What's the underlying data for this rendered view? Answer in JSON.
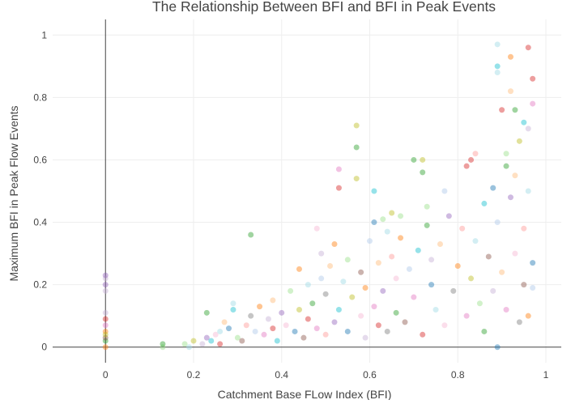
{
  "chart_data": {
    "type": "scatter",
    "title": "The Relationship Between BFI and BFI in Peak Events",
    "xlabel": "Catchment Base FLow Index (BFI)",
    "ylabel": "Maximum BFI in Peak Flow Events",
    "xlim": [
      -0.12,
      1.035
    ],
    "ylim": [
      -0.05,
      1.05
    ],
    "xticks": [
      0,
      0.2,
      0.4,
      0.6,
      0.8,
      1
    ],
    "xtick_labels": [
      "0",
      "0.2",
      "0.4",
      "0.6",
      "0.8",
      "1"
    ],
    "yticks": [
      0,
      0.2,
      0.4,
      0.6,
      0.8,
      1
    ],
    "ytick_labels": [
      "0",
      "0.2",
      "0.4",
      "0.6",
      "0.8",
      "1"
    ],
    "grid": true,
    "legend": "none",
    "marker_opacity": 0.45,
    "palette": [
      "#1f77b4",
      "#ff7f0e",
      "#2ca02c",
      "#d62728",
      "#9467bd",
      "#8c564b",
      "#e377c2",
      "#7f7f7f",
      "#bcbd22",
      "#17becf",
      "#aec7e8",
      "#ffbb78",
      "#98df8a",
      "#ff9896",
      "#c5b0d5",
      "#f7b6d2",
      "#9edae5"
    ],
    "points": [
      {
        "x": 0.0,
        "y": 0.0,
        "c": 1
      },
      {
        "x": 0.0,
        "y": 0.02,
        "c": 2
      },
      {
        "x": 0.0,
        "y": 0.03,
        "c": 5
      },
      {
        "x": 0.0,
        "y": 0.05,
        "c": 1
      },
      {
        "x": 0.0,
        "y": 0.07,
        "c": 6
      },
      {
        "x": 0.0,
        "y": 0.09,
        "c": 3
      },
      {
        "x": 0.0,
        "y": 0.11,
        "c": 14
      },
      {
        "x": 0.0,
        "y": 0.18,
        "c": 14
      },
      {
        "x": 0.0,
        "y": 0.2,
        "c": 4
      },
      {
        "x": 0.0,
        "y": 0.22,
        "c": 14
      },
      {
        "x": 0.0,
        "y": 0.23,
        "c": 4
      },
      {
        "x": 0.0,
        "y": 0.04,
        "c": 8
      },
      {
        "x": 0.13,
        "y": 0.0,
        "c": 12
      },
      {
        "x": 0.13,
        "y": 0.01,
        "c": 2
      },
      {
        "x": 0.18,
        "y": 0.01,
        "c": 12
      },
      {
        "x": 0.19,
        "y": 0.0,
        "c": 16
      },
      {
        "x": 0.2,
        "y": 0.02,
        "c": 8
      },
      {
        "x": 0.22,
        "y": 0.01,
        "c": 14
      },
      {
        "x": 0.23,
        "y": 0.03,
        "c": 4
      },
      {
        "x": 0.23,
        "y": 0.11,
        "c": 2
      },
      {
        "x": 0.24,
        "y": 0.02,
        "c": 9
      },
      {
        "x": 0.25,
        "y": 0.04,
        "c": 15
      },
      {
        "x": 0.26,
        "y": 0.05,
        "c": 16
      },
      {
        "x": 0.26,
        "y": 0.01,
        "c": 3
      },
      {
        "x": 0.27,
        "y": 0.08,
        "c": 11
      },
      {
        "x": 0.28,
        "y": 0.06,
        "c": 0
      },
      {
        "x": 0.29,
        "y": 0.12,
        "c": 9
      },
      {
        "x": 0.29,
        "y": 0.14,
        "c": 16
      },
      {
        "x": 0.3,
        "y": 0.03,
        "c": 12
      },
      {
        "x": 0.31,
        "y": 0.02,
        "c": 5
      },
      {
        "x": 0.32,
        "y": 0.07,
        "c": 13
      },
      {
        "x": 0.33,
        "y": 0.36,
        "c": 2
      },
      {
        "x": 0.33,
        "y": 0.1,
        "c": 7
      },
      {
        "x": 0.34,
        "y": 0.05,
        "c": 10
      },
      {
        "x": 0.35,
        "y": 0.13,
        "c": 1
      },
      {
        "x": 0.36,
        "y": 0.04,
        "c": 6
      },
      {
        "x": 0.37,
        "y": 0.09,
        "c": 14
      },
      {
        "x": 0.38,
        "y": 0.06,
        "c": 3
      },
      {
        "x": 0.38,
        "y": 0.15,
        "c": 11
      },
      {
        "x": 0.39,
        "y": 0.02,
        "c": 9
      },
      {
        "x": 0.4,
        "y": 0.11,
        "c": 4
      },
      {
        "x": 0.41,
        "y": 0.07,
        "c": 15
      },
      {
        "x": 0.42,
        "y": 0.18,
        "c": 12
      },
      {
        "x": 0.43,
        "y": 0.05,
        "c": 0
      },
      {
        "x": 0.44,
        "y": 0.25,
        "c": 1
      },
      {
        "x": 0.44,
        "y": 0.12,
        "c": 8
      },
      {
        "x": 0.45,
        "y": 0.03,
        "c": 5
      },
      {
        "x": 0.46,
        "y": 0.2,
        "c": 16
      },
      {
        "x": 0.46,
        "y": 0.09,
        "c": 3
      },
      {
        "x": 0.47,
        "y": 0.14,
        "c": 2
      },
      {
        "x": 0.48,
        "y": 0.38,
        "c": 15
      },
      {
        "x": 0.48,
        "y": 0.06,
        "c": 6
      },
      {
        "x": 0.49,
        "y": 0.22,
        "c": 10
      },
      {
        "x": 0.49,
        "y": 0.3,
        "c": 14
      },
      {
        "x": 0.5,
        "y": 0.04,
        "c": 13
      },
      {
        "x": 0.5,
        "y": 0.17,
        "c": 7
      },
      {
        "x": 0.51,
        "y": 0.26,
        "c": 11
      },
      {
        "x": 0.52,
        "y": 0.08,
        "c": 4
      },
      {
        "x": 0.52,
        "y": 0.33,
        "c": 1
      },
      {
        "x": 0.53,
        "y": 0.51,
        "c": 3
      },
      {
        "x": 0.53,
        "y": 0.57,
        "c": 6
      },
      {
        "x": 0.53,
        "y": 0.12,
        "c": 9
      },
      {
        "x": 0.54,
        "y": 0.21,
        "c": 16
      },
      {
        "x": 0.55,
        "y": 0.05,
        "c": 0
      },
      {
        "x": 0.55,
        "y": 0.28,
        "c": 12
      },
      {
        "x": 0.56,
        "y": 0.16,
        "c": 8
      },
      {
        "x": 0.57,
        "y": 0.54,
        "c": 8
      },
      {
        "x": 0.57,
        "y": 0.64,
        "c": 2
      },
      {
        "x": 0.57,
        "y": 0.71,
        "c": 8
      },
      {
        "x": 0.58,
        "y": 0.1,
        "c": 15
      },
      {
        "x": 0.58,
        "y": 0.24,
        "c": 5
      },
      {
        "x": 0.59,
        "y": 0.03,
        "c": 14
      },
      {
        "x": 0.59,
        "y": 0.19,
        "c": 1
      },
      {
        "x": 0.6,
        "y": 0.34,
        "c": 10
      },
      {
        "x": 0.61,
        "y": 0.4,
        "c": 0
      },
      {
        "x": 0.61,
        "y": 0.5,
        "c": 9
      },
      {
        "x": 0.61,
        "y": 0.13,
        "c": 6
      },
      {
        "x": 0.62,
        "y": 0.07,
        "c": 3
      },
      {
        "x": 0.62,
        "y": 0.27,
        "c": 11
      },
      {
        "x": 0.63,
        "y": 0.41,
        "c": 12
      },
      {
        "x": 0.63,
        "y": 0.18,
        "c": 4
      },
      {
        "x": 0.64,
        "y": 0.37,
        "c": 16
      },
      {
        "x": 0.64,
        "y": 0.05,
        "c": 7
      },
      {
        "x": 0.65,
        "y": 0.29,
        "c": 13
      },
      {
        "x": 0.65,
        "y": 0.43,
        "c": 8
      },
      {
        "x": 0.66,
        "y": 0.11,
        "c": 2
      },
      {
        "x": 0.66,
        "y": 0.22,
        "c": 15
      },
      {
        "x": 0.67,
        "y": 0.35,
        "c": 1
      },
      {
        "x": 0.67,
        "y": 0.42,
        "c": 12
      },
      {
        "x": 0.68,
        "y": 0.08,
        "c": 5
      },
      {
        "x": 0.69,
        "y": 0.25,
        "c": 10
      },
      {
        "x": 0.7,
        "y": 0.16,
        "c": 6
      },
      {
        "x": 0.7,
        "y": 0.6,
        "c": 2
      },
      {
        "x": 0.71,
        "y": 0.31,
        "c": 9
      },
      {
        "x": 0.72,
        "y": 0.04,
        "c": 3
      },
      {
        "x": 0.72,
        "y": 0.56,
        "c": 2
      },
      {
        "x": 0.72,
        "y": 0.6,
        "c": 8
      },
      {
        "x": 0.73,
        "y": 0.45,
        "c": 12
      },
      {
        "x": 0.73,
        "y": 0.39,
        "c": 2
      },
      {
        "x": 0.74,
        "y": 0.2,
        "c": 0
      },
      {
        "x": 0.74,
        "y": 0.28,
        "c": 14
      },
      {
        "x": 0.75,
        "y": 0.12,
        "c": 16
      },
      {
        "x": 0.76,
        "y": 0.33,
        "c": 11
      },
      {
        "x": 0.77,
        "y": 0.5,
        "c": 10
      },
      {
        "x": 0.77,
        "y": 0.07,
        "c": 15
      },
      {
        "x": 0.78,
        "y": 0.42,
        "c": 4
      },
      {
        "x": 0.79,
        "y": 0.18,
        "c": 7
      },
      {
        "x": 0.8,
        "y": 0.26,
        "c": 1
      },
      {
        "x": 0.81,
        "y": 0.38,
        "c": 13
      },
      {
        "x": 0.82,
        "y": 0.1,
        "c": 6
      },
      {
        "x": 0.82,
        "y": 0.58,
        "c": 3
      },
      {
        "x": 0.83,
        "y": 0.6,
        "c": 3
      },
      {
        "x": 0.83,
        "y": 0.22,
        "c": 8
      },
      {
        "x": 0.84,
        "y": 0.62,
        "c": 13
      },
      {
        "x": 0.84,
        "y": 0.34,
        "c": 16
      },
      {
        "x": 0.85,
        "y": 0.14,
        "c": 12
      },
      {
        "x": 0.86,
        "y": 0.46,
        "c": 9
      },
      {
        "x": 0.86,
        "y": 0.05,
        "c": 2
      },
      {
        "x": 0.87,
        "y": 0.29,
        "c": 5
      },
      {
        "x": 0.88,
        "y": 0.51,
        "c": 0
      },
      {
        "x": 0.88,
        "y": 0.18,
        "c": 14
      },
      {
        "x": 0.89,
        "y": 0.97,
        "c": 16
      },
      {
        "x": 0.89,
        "y": 0.9,
        "c": 9
      },
      {
        "x": 0.89,
        "y": 0.88,
        "c": 16
      },
      {
        "x": 0.89,
        "y": 0.0,
        "c": 0
      },
      {
        "x": 0.89,
        "y": 0.4,
        "c": 10
      },
      {
        "x": 0.9,
        "y": 0.76,
        "c": 3
      },
      {
        "x": 0.9,
        "y": 0.24,
        "c": 11
      },
      {
        "x": 0.91,
        "y": 0.58,
        "c": 2
      },
      {
        "x": 0.91,
        "y": 0.62,
        "c": 12
      },
      {
        "x": 0.91,
        "y": 0.12,
        "c": 6
      },
      {
        "x": 0.92,
        "y": 0.93,
        "c": 1
      },
      {
        "x": 0.92,
        "y": 0.82,
        "c": 11
      },
      {
        "x": 0.92,
        "y": 0.48,
        "c": 4
      },
      {
        "x": 0.93,
        "y": 0.76,
        "c": 2
      },
      {
        "x": 0.93,
        "y": 0.55,
        "c": 11
      },
      {
        "x": 0.93,
        "y": 0.3,
        "c": 15
      },
      {
        "x": 0.94,
        "y": 0.66,
        "c": 8
      },
      {
        "x": 0.94,
        "y": 0.08,
        "c": 7
      },
      {
        "x": 0.95,
        "y": 0.72,
        "c": 9
      },
      {
        "x": 0.95,
        "y": 0.38,
        "c": 13
      },
      {
        "x": 0.95,
        "y": 0.2,
        "c": 5
      },
      {
        "x": 0.96,
        "y": 0.96,
        "c": 3
      },
      {
        "x": 0.96,
        "y": 0.7,
        "c": 14
      },
      {
        "x": 0.96,
        "y": 0.5,
        "c": 16
      },
      {
        "x": 0.96,
        "y": 0.1,
        "c": 1
      },
      {
        "x": 0.97,
        "y": 0.78,
        "c": 6
      },
      {
        "x": 0.97,
        "y": 0.86,
        "c": 3
      },
      {
        "x": 0.97,
        "y": 0.19,
        "c": 10
      },
      {
        "x": 0.97,
        "y": 0.27,
        "c": 0
      }
    ]
  }
}
